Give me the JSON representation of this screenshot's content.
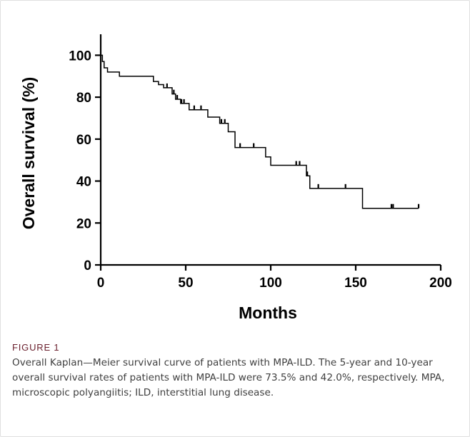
{
  "figure": {
    "label": "FIGURE 1",
    "caption": "Overall Kaplan—Meier survival curve of patients with MPA-ILD. The 5-year and 10-year overall survival rates of patients with MPA-ILD were 73.5% and 42.0%, respectively. MPA, microscopic polyangiitis; ILD, interstitial lung disease."
  },
  "colors": {
    "line": "#000000",
    "axis": "#000000",
    "label_accent": "#6a1f2d",
    "caption": "#404040"
  },
  "chart_data": {
    "type": "line",
    "step": true,
    "title": "",
    "xlabel": "Months",
    "ylabel": "Overall survival (%)",
    "xlim": [
      0,
      200
    ],
    "ylim": [
      0,
      110
    ],
    "xticks": [
      0,
      50,
      100,
      150,
      200
    ],
    "yticks": [
      0,
      20,
      40,
      60,
      80,
      100
    ],
    "grid": false,
    "legend": "none",
    "series": [
      {
        "x": [
          0,
          1,
          2,
          4,
          11,
          31,
          34,
          37,
          42,
          44,
          47,
          52,
          63,
          70,
          75,
          79,
          97,
          100,
          121,
          123,
          154,
          187
        ],
        "y": [
          100,
          97,
          94,
          92,
          90,
          87.5,
          86,
          84.5,
          81.5,
          79,
          77,
          74,
          70.5,
          67.5,
          63.5,
          56,
          51.5,
          47.5,
          42.5,
          36.5,
          27,
          27
        ],
        "censored": [
          {
            "x": 39,
            "y": 84.5
          },
          {
            "x": 43,
            "y": 81.5
          },
          {
            "x": 45,
            "y": 79
          },
          {
            "x": 47.5,
            "y": 77
          },
          {
            "x": 49,
            "y": 77
          },
          {
            "x": 55,
            "y": 74
          },
          {
            "x": 59,
            "y": 74
          },
          {
            "x": 71,
            "y": 67.5
          },
          {
            "x": 73,
            "y": 67.5
          },
          {
            "x": 82,
            "y": 56
          },
          {
            "x": 90,
            "y": 56
          },
          {
            "x": 115,
            "y": 47.5
          },
          {
            "x": 117,
            "y": 47.5
          },
          {
            "x": 121.5,
            "y": 42.5
          },
          {
            "x": 128,
            "y": 36.5
          },
          {
            "x": 144,
            "y": 36.5
          },
          {
            "x": 171,
            "y": 27
          },
          {
            "x": 172,
            "y": 27
          },
          {
            "x": 187,
            "y": 27
          }
        ]
      }
    ]
  }
}
